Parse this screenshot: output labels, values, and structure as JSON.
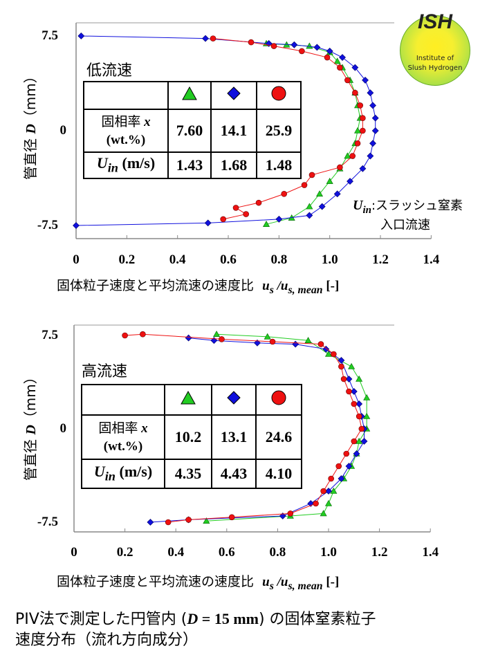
{
  "logo": {
    "abbr": "ISH",
    "line1": "Institute of",
    "line2": "Slush Hydrogen"
  },
  "axis_common": {
    "ylabel_jp": "管直径",
    "ylabel_var": "D",
    "ylabel_unit": "（mm）",
    "xlabel_jp": "固体粒子速度と平均流速の速度比",
    "xlabel_math": "u",
    "xlabel_sub1": "s",
    "xlabel_slash": " /u",
    "xlabel_sub2": "s, mean",
    "xlabel_unit": " [-]",
    "xticks": [
      "0",
      "0.2",
      "0.4",
      "0.6",
      "0.8",
      "1.0",
      "1.2",
      "1.4"
    ],
    "yticks": [
      "7.5",
      "0",
      "-7.5"
    ]
  },
  "table_labels": {
    "x_label": "固相率",
    "x_var": "x",
    "x_unit": "(wt.%)",
    "u_var": "U",
    "u_sub": "in",
    "u_unit": " (m/s)"
  },
  "annotation": {
    "var": "U",
    "sub": "in",
    "text1": ":スラッシュ窒素",
    "text2": "入口流速"
  },
  "caption": {
    "line1_a": "PIV法で測定した円管内 (",
    "line1_b": "D",
    "line1_c": " = 15 mm",
    "line1_d": ") の固体窒素粒子",
    "line2": "速度分布（流れ方向成分）"
  },
  "colors": {
    "green": "#22cc22",
    "blue": "#1010dd",
    "red": "#ee1111"
  },
  "chart_data": [
    {
      "type": "scatter",
      "title": "低流速",
      "xlabel": "固体粒子速度と平均流速の速度比 us/us,mean [-]",
      "ylabel": "管直径 D (mm)",
      "xlim": [
        0,
        1.4
      ],
      "ylim": [
        -7.5,
        7.5
      ],
      "table": {
        "x": [
          "7.60",
          "14.1",
          "25.9"
        ],
        "uin": [
          "1.43",
          "1.68",
          "1.48"
        ]
      },
      "series": [
        {
          "name": "x=7.60 wt.%",
          "marker": "triangle",
          "color": "#22cc22",
          "points": [
            [
              0.75,
              6.9
            ],
            [
              0.83,
              6.8
            ],
            [
              0.92,
              6.7
            ],
            [
              1.0,
              6.2
            ],
            [
              1.03,
              5.5
            ],
            [
              1.05,
              5.0
            ],
            [
              1.08,
              4.0
            ],
            [
              1.1,
              3.0
            ],
            [
              1.11,
              2.0
            ],
            [
              1.12,
              1.0
            ],
            [
              1.11,
              0
            ],
            [
              1.1,
              -1
            ],
            [
              1.07,
              -2
            ],
            [
              1.04,
              -3
            ],
            [
              1.0,
              -4
            ],
            [
              0.96,
              -5
            ],
            [
              0.92,
              -6
            ],
            [
              0.85,
              -6.9
            ],
            [
              0.75,
              -7.4
            ]
          ]
        },
        {
          "name": "x=14.1 wt.%",
          "marker": "diamond",
          "color": "#1010dd",
          "points": [
            [
              0.02,
              7.5
            ],
            [
              0.51,
              7.3
            ],
            [
              0.76,
              6.9
            ],
            [
              0.86,
              6.8
            ],
            [
              0.95,
              6.6
            ],
            [
              1.0,
              6.3
            ],
            [
              1.05,
              5.8
            ],
            [
              1.1,
              5.0
            ],
            [
              1.14,
              4.0
            ],
            [
              1.16,
              3.0
            ],
            [
              1.17,
              2.0
            ],
            [
              1.18,
              1.0
            ],
            [
              1.18,
              0
            ],
            [
              1.17,
              -1
            ],
            [
              1.16,
              -2
            ],
            [
              1.13,
              -3
            ],
            [
              1.08,
              -4
            ],
            [
              1.03,
              -5
            ],
            [
              0.97,
              -6
            ],
            [
              0.92,
              -6.7
            ],
            [
              0.8,
              -7.0
            ],
            [
              0.52,
              -7.3
            ],
            [
              0.0,
              -7.5
            ]
          ]
        },
        {
          "name": "x=25.9 wt.%",
          "marker": "circle",
          "color": "#ee1111",
          "points": [
            [
              0.54,
              7.3
            ],
            [
              0.69,
              7.0
            ],
            [
              0.78,
              6.7
            ],
            [
              0.89,
              6.3
            ],
            [
              0.99,
              5.8
            ],
            [
              1.04,
              5.0
            ],
            [
              1.07,
              4.0
            ],
            [
              1.1,
              3.0
            ],
            [
              1.12,
              2.0
            ],
            [
              1.13,
              1.0
            ],
            [
              1.13,
              0
            ],
            [
              1.11,
              -1
            ],
            [
              1.09,
              -2
            ],
            [
              1.04,
              -2.9
            ],
            [
              0.93,
              -3.5
            ],
            [
              0.9,
              -4.3
            ],
            [
              0.82,
              -5.0
            ],
            [
              0.72,
              -5.7
            ],
            [
              0.63,
              -6.1
            ],
            [
              0.67,
              -6.6
            ],
            [
              0.58,
              -7.0
            ]
          ]
        }
      ]
    },
    {
      "type": "scatter",
      "title": "高流速",
      "xlabel": "固体粒子速度と平均流速の速度比 us/us,mean [-]",
      "ylabel": "管直径 D (mm)",
      "xlim": [
        0,
        1.4
      ],
      "ylim": [
        -7.5,
        7.5
      ],
      "table": {
        "x": [
          "10.2",
          "13.1",
          "24.6"
        ],
        "uin": [
          "4.35",
          "4.43",
          "4.10"
        ]
      },
      "series": [
        {
          "name": "x=10.2 wt.%",
          "marker": "triangle",
          "color": "#22cc22",
          "points": [
            [
              0.56,
              7.6
            ],
            [
              0.76,
              7.4
            ],
            [
              0.92,
              7.1
            ],
            [
              1.0,
              6.0
            ],
            [
              1.09,
              5.0
            ],
            [
              1.12,
              4.0
            ],
            [
              1.15,
              2.5
            ],
            [
              1.15,
              1.0
            ],
            [
              1.15,
              0
            ],
            [
              1.12,
              -1
            ],
            [
              1.11,
              -2
            ],
            [
              1.09,
              -3
            ],
            [
              1.06,
              -4
            ],
            [
              1.02,
              -5
            ],
            [
              1.0,
              -6
            ],
            [
              0.98,
              -6.8
            ],
            [
              0.85,
              -7.0
            ],
            [
              0.52,
              -7.4
            ]
          ]
        },
        {
          "name": "x=13.1 wt.%",
          "marker": "diamond",
          "color": "#1010dd",
          "points": [
            [
              0.45,
              7.3
            ],
            [
              0.55,
              7.1
            ],
            [
              0.72,
              6.9
            ],
            [
              0.87,
              6.8
            ],
            [
              0.99,
              6.4
            ],
            [
              1.05,
              5.5
            ],
            [
              1.08,
              4.0
            ],
            [
              1.1,
              3.0
            ],
            [
              1.12,
              2.0
            ],
            [
              1.13,
              1.0
            ],
            [
              1.14,
              0
            ],
            [
              1.14,
              -1
            ],
            [
              1.11,
              -2
            ],
            [
              1.08,
              -3
            ],
            [
              1.05,
              -4
            ],
            [
              1.0,
              -5
            ],
            [
              0.93,
              -6
            ],
            [
              0.82,
              -7.0
            ],
            [
              0.45,
              -7.3
            ],
            [
              0.3,
              -7.5
            ]
          ]
        },
        {
          "name": "x=24.6 wt.%",
          "marker": "circle",
          "color": "#ee1111",
          "points": [
            [
              0.2,
              7.5
            ],
            [
              0.27,
              7.6
            ],
            [
              0.58,
              7.2
            ],
            [
              0.78,
              7.0
            ],
            [
              0.97,
              6.8
            ],
            [
              1.02,
              6.0
            ],
            [
              1.05,
              5.0
            ],
            [
              1.06,
              4.0
            ],
            [
              1.08,
              3.0
            ],
            [
              1.1,
              2.0
            ],
            [
              1.12,
              1.0
            ],
            [
              1.13,
              0
            ],
            [
              1.1,
              -1
            ],
            [
              1.07,
              -2
            ],
            [
              1.04,
              -3
            ],
            [
              1.01,
              -4
            ],
            [
              0.98,
              -5
            ],
            [
              0.95,
              -6
            ],
            [
              0.85,
              -6.8
            ],
            [
              0.62,
              -7.1
            ],
            [
              0.45,
              -7.3
            ],
            [
              0.37,
              -7.5
            ]
          ]
        }
      ]
    }
  ]
}
